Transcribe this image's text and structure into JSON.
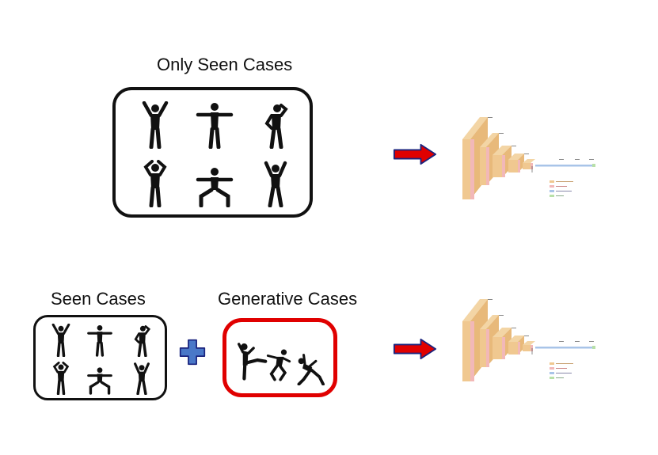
{
  "top": {
    "title": "Only Seen Cases"
  },
  "bottom": {
    "seen_title": "Seen Cases",
    "generative_title": "Generative Cases"
  },
  "icons": {
    "figure": "human-pose-icon",
    "arrow": "right-arrow-icon",
    "plus": "plus-icon",
    "network": "cnn-architecture-diagram"
  },
  "colors": {
    "figure": "#111111",
    "arrow_fill": "#e00000",
    "arrow_stroke": "#1a237e",
    "plus_fill": "#4a78c8",
    "plus_stroke": "#1a237e",
    "generative_border": "#e00000"
  }
}
